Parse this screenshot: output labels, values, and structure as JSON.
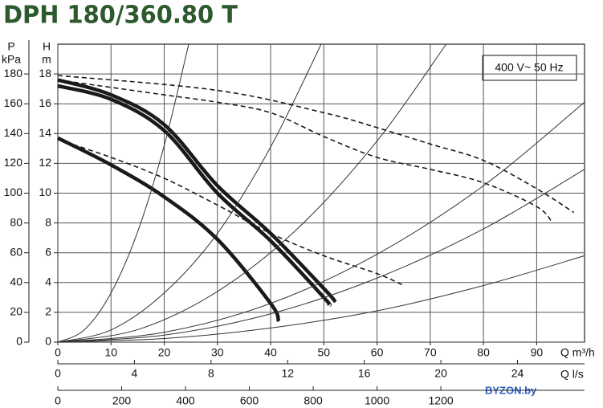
{
  "chart_data": {
    "type": "line",
    "title": "DPH 180/360.80 T",
    "annotation": "400 V~ 50 Hz",
    "watermark": "BYZON.by",
    "xlabel": "Q m³/h",
    "xlim": [
      0,
      99
    ],
    "xticks": [
      0,
      10,
      20,
      30,
      40,
      50,
      60,
      70,
      80,
      90
    ],
    "x2label": "Q l/s",
    "x2lim": [
      0,
      27.5
    ],
    "x2ticks": [
      0,
      4,
      8,
      12,
      16,
      20,
      24
    ],
    "x3lim": [
      0,
      1650
    ],
    "x3ticks": [
      0,
      200,
      400,
      600,
      800,
      1000,
      1200
    ],
    "ylabel": "H",
    "yunit": "m",
    "ylim": [
      0,
      20
    ],
    "yticks": [
      0,
      2,
      4,
      6,
      8,
      10,
      12,
      14,
      16,
      18
    ],
    "y2label": "P",
    "y2unit": "kPa",
    "y2lim": [
      0,
      200
    ],
    "y2ticks": [
      0,
      20,
      40,
      60,
      80,
      100,
      120,
      140,
      160,
      180
    ],
    "grid": true,
    "series": [
      {
        "style": "thick",
        "color": "#1a1a1a",
        "x": [
          0,
          10,
          20,
          30,
          40,
          50,
          52.2
        ],
        "values": [
          17.6,
          16.6,
          14.6,
          10.5,
          7.3,
          3.6,
          2.7
        ]
      },
      {
        "style": "thick",
        "color": "#1a1a1a",
        "x": [
          0,
          10,
          20,
          30,
          40,
          50,
          51
        ],
        "values": [
          17.2,
          16.3,
          14.2,
          10.0,
          6.8,
          3.0,
          2.5
        ]
      },
      {
        "style": "thick",
        "color": "#1a1a1a",
        "x": [
          0,
          10,
          20,
          30,
          40,
          41.5
        ],
        "values": [
          13.7,
          11.9,
          9.75,
          6.9,
          2.6,
          1.4
        ]
      },
      {
        "style": "dashed",
        "color": "#1a1a1a",
        "x": [
          0,
          30,
          50,
          60,
          70,
          80,
          90,
          97
        ],
        "values": [
          17.9,
          16.9,
          15.4,
          14.4,
          13.3,
          12.2,
          10.3,
          8.7
        ]
      },
      {
        "style": "dashed",
        "color": "#1a1a1a",
        "x": [
          0,
          20,
          30,
          40,
          50,
          60,
          70,
          80,
          90,
          93
        ],
        "values": [
          17.6,
          16.6,
          16.1,
          15.4,
          13.8,
          12.4,
          11.6,
          10.7,
          9.1,
          8.0
        ]
      },
      {
        "style": "dashed",
        "color": "#1a1a1a",
        "x": [
          0,
          10,
          20,
          30,
          40,
          50,
          60,
          65
        ],
        "values": [
          13.6,
          12.4,
          11.0,
          9.2,
          7.3,
          5.8,
          4.6,
          3.8
        ]
      },
      {
        "style": "thin",
        "color": "#333333",
        "x": [
          0,
          5,
          10,
          15,
          20,
          24.6
        ],
        "values": [
          0,
          0.83,
          3.3,
          7.4,
          13.2,
          20
        ]
      },
      {
        "style": "thin",
        "color": "#333333",
        "x": [
          0,
          10,
          20,
          30,
          40,
          49.5
        ],
        "values": [
          0,
          0.82,
          3.3,
          7.3,
          13.1,
          20
        ]
      },
      {
        "style": "thin",
        "color": "#333333",
        "x": [
          0,
          15,
          30,
          45,
          60,
          73
        ],
        "values": [
          0,
          0.84,
          3.4,
          7.6,
          13.5,
          20
        ]
      },
      {
        "style": "thin",
        "color": "#333333",
        "x": [
          0,
          20,
          40,
          60,
          80,
          99
        ],
        "values": [
          0,
          0.66,
          2.6,
          5.9,
          10.5,
          16.1
        ]
      },
      {
        "style": "thin",
        "color": "#333333",
        "x": [
          0,
          20,
          40,
          60,
          80,
          99
        ],
        "values": [
          0,
          0.47,
          1.9,
          4.3,
          7.6,
          11.6
        ]
      },
      {
        "style": "thin",
        "color": "#333333",
        "x": [
          0,
          20,
          40,
          60,
          80,
          99
        ],
        "values": [
          0,
          0.24,
          0.95,
          2.1,
          3.8,
          5.8
        ]
      }
    ]
  }
}
